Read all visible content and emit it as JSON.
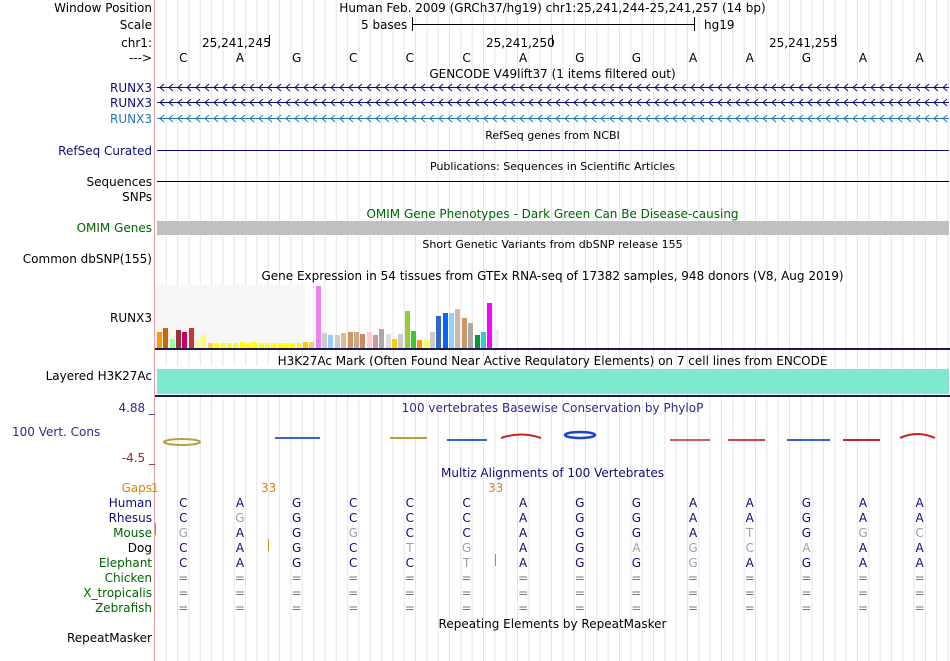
{
  "header": {
    "window_position_label": "Window Position",
    "window_position_value": "Human Feb. 2009 (GRCh37/hg19)   chr1:25,241,244-25,241,257 (14 bp)",
    "scale_label": "Scale",
    "scale_bases": "5 bases",
    "scale_assembly": "hg19",
    "chrom_label": "chr1:",
    "arrow_label": "--->",
    "ticks": [
      "25,241,245",
      "25,241,250",
      "25,241,255"
    ]
  },
  "bases": [
    "C",
    "A",
    "G",
    "C",
    "C",
    "C",
    "A",
    "G",
    "G",
    "A",
    "A",
    "G",
    "A",
    "A"
  ],
  "gencode": {
    "title": "GENCODE V49lift37 (1 items filtered out)",
    "genes": [
      {
        "label": "RUNX3",
        "color": "#0c0c78"
      },
      {
        "label": "RUNX3",
        "color": "#0c0c78"
      },
      {
        "label": "RUNX3",
        "color": "#1f77b4"
      }
    ]
  },
  "refseq": {
    "title": "RefSeq genes from NCBI",
    "label": "RefSeq Curated"
  },
  "publications": {
    "title": "Publications: Sequences in Scientific Articles",
    "label": "Sequences"
  },
  "snps": {
    "label": "SNPs"
  },
  "omim": {
    "title": "OMIM Gene Phenotypes - Dark Green Can Be Disease-causing",
    "label": "OMIM Genes"
  },
  "dbsnp": {
    "title": "Short Genetic Variants from dbSNP release 155",
    "label": "Common dbSNP(155)"
  },
  "gtex": {
    "title": "Gene Expression in 54 tissues from GTEx RNA-seq of 17382 samples, 948 donors (V8, Aug 2019)",
    "label": "RUNX3",
    "values": [
      17,
      21,
      9,
      19,
      17,
      21,
      8,
      13,
      5,
      5,
      5,
      5,
      5,
      6,
      5,
      6,
      5,
      5,
      5,
      5,
      5,
      5,
      5,
      6,
      6,
      64,
      16,
      13,
      13,
      16,
      17,
      17,
      14,
      17,
      13,
      20,
      14,
      9,
      14,
      38,
      18,
      8,
      9,
      17,
      33,
      36,
      36,
      40,
      31,
      26,
      13,
      17,
      46,
      20
    ],
    "colors": [
      "#ff9900",
      "#cc6600",
      "#99ff99",
      "#993333",
      "#cc0066",
      "#cc3333",
      "#ffff99",
      "#ffff66",
      "#ffcc66",
      "#ffff00",
      "#ffff00",
      "#ffff00",
      "#ffff00",
      "#ffff00",
      "#ffff00",
      "#ffff00",
      "#ffff00",
      "#ffff00",
      "#ffff00",
      "#ffff00",
      "#ffff00",
      "#ffff00",
      "#ffff00",
      "#ffcc00",
      "#ffcc66",
      "#ee82ee",
      "#cccccc",
      "#99ccff",
      "#cccccc",
      "#ddbb99",
      "#cc9966",
      "#ccaa88",
      "#cc8866",
      "#ffcccc",
      "#cc9999",
      "#aaaaaa",
      "#dddddd",
      "#ffcc00",
      "#cccccc",
      "#99cc33",
      "#33cc33",
      "#ff9900",
      "#ffff66",
      "#cccccc",
      "#3366cc",
      "#0066ff",
      "#99ccff",
      "#ccbbaa",
      "#cc9966",
      "#aaaaaa",
      "#009933",
      "#33cccc",
      "#ff00ff",
      "#eeeeee"
    ]
  },
  "h3k27ac": {
    "title": "H3K27Ac Mark (Often Found Near Active Regulatory Elements) on 7 cell lines from ENCODE",
    "label": "Layered H3K27Ac",
    "color": "#7ee8d0"
  },
  "conservation": {
    "title": "100 vertebrates Basewise Conservation by PhyloP",
    "label": "100 Vert. Cons",
    "max_label": "4.88 _",
    "min_label": "-4.5 _"
  },
  "multiz": {
    "title": "Multiz Alignments of 100 Vertebrates",
    "gaps_label": "Gaps",
    "gap_numbers": [
      "1",
      "33",
      "33"
    ],
    "species": [
      {
        "name": "Human",
        "color": "#0c0c78",
        "seq": [
          "C",
          "A",
          "G",
          "C",
          "C",
          "C",
          "A",
          "G",
          "G",
          "A",
          "A",
          "G",
          "A",
          "A"
        ],
        "dim": []
      },
      {
        "name": "Rhesus",
        "color": "#0c0c78",
        "seq": [
          "C",
          "G",
          "G",
          "C",
          "C",
          "C",
          "A",
          "G",
          "G",
          "A",
          "A",
          "G",
          "A",
          "A"
        ],
        "dim": [
          1
        ]
      },
      {
        "name": "Mouse",
        "color": "#006400",
        "seq": [
          "G",
          "A",
          "G",
          "G",
          "C",
          "C",
          "A",
          "G",
          "G",
          "A",
          "T",
          "G",
          "G",
          "C"
        ],
        "dim": [
          0,
          3,
          10,
          12,
          13
        ]
      },
      {
        "name": "Dog",
        "color": "#000000",
        "seq": [
          "C",
          "A",
          "G",
          "C",
          "T",
          "G",
          "A",
          "G",
          "A",
          "G",
          "C",
          "A",
          "A",
          "A"
        ],
        "dim": [
          4,
          5,
          8,
          9,
          10,
          11
        ]
      },
      {
        "name": "Elephant",
        "color": "#006400",
        "seq": [
          "C",
          "A",
          "G",
          "C",
          "C",
          "T",
          "A",
          "G",
          "G",
          "G",
          "A",
          "G",
          "A",
          "A"
        ],
        "dim": [
          5,
          9
        ]
      },
      {
        "name": "Chicken",
        "color": "#006400",
        "seq": [
          "=",
          "=",
          "=",
          "=",
          "=",
          "=",
          "=",
          "=",
          "=",
          "=",
          "=",
          "=",
          "=",
          "="
        ],
        "dim": []
      },
      {
        "name": "X_tropicalis",
        "color": "#006400",
        "seq": [
          "=",
          "=",
          "=",
          "=",
          "=",
          "=",
          "=",
          "=",
          "=",
          "=",
          "=",
          "=",
          "=",
          "="
        ],
        "dim": []
      },
      {
        "name": "Zebrafish",
        "color": "#006400",
        "seq": [
          "=",
          "=",
          "=",
          "=",
          "=",
          "=",
          "=",
          "=",
          "=",
          "=",
          "=",
          "=",
          "=",
          "="
        ],
        "dim": []
      }
    ]
  },
  "repeatmasker": {
    "title": "Repeating Elements by RepeatMasker",
    "label": "RepeatMasker"
  },
  "colors": {
    "dark_blue": "#0c0c78",
    "gene_light": "#1f77b4",
    "omim_gray": "#c0c0c0",
    "gaps_orange": "#d4860b",
    "cons_blue": "#2b2b8c",
    "cons_red": "#8b2d2d"
  }
}
